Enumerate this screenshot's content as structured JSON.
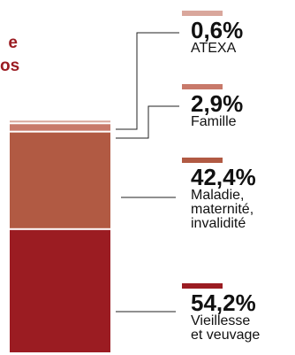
{
  "title_fragments": [
    "e",
    "os"
  ],
  "chart_data": {
    "type": "bar",
    "stacked": true,
    "series": [
      {
        "name": "ATEXA",
        "value_label": "0,6%",
        "value": 0.6,
        "color": "#d9a79c"
      },
      {
        "name": "Famille",
        "value_label": "2,9%",
        "value": 2.9,
        "color": "#c8796a"
      },
      {
        "name": "Maladie, maternité, invalidité",
        "label_lines": "Maladie,\nmaternité,\ninvalidité",
        "value_label": "42,4%",
        "value": 42.4,
        "color": "#b15a43"
      },
      {
        "name": "Vieillesse et veuvage",
        "label_lines": "Vieillesse\net veuvage",
        "value_label": "54,2%",
        "value": 54.2,
        "color": "#9b1c22"
      }
    ],
    "total": 100
  }
}
